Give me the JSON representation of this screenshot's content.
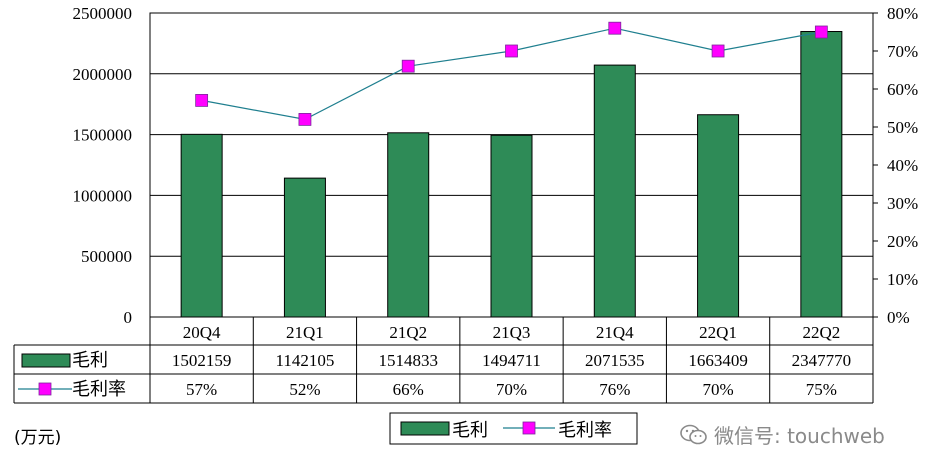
{
  "chart_data": {
    "type": "bar",
    "categories": [
      "20Q4",
      "21Q1",
      "21Q2",
      "21Q3",
      "21Q4",
      "22Q1",
      "22Q2"
    ],
    "series": [
      {
        "name": "毛利",
        "type": "bar",
        "axis": "left",
        "values": [
          1502159,
          1142105,
          1514833,
          1494711,
          2071535,
          1663409,
          2347770
        ],
        "color": "#2e8b57"
      },
      {
        "name": "毛利率",
        "type": "line",
        "axis": "right",
        "values": [
          57,
          52,
          66,
          70,
          76,
          70,
          75
        ],
        "labels": [
          "57%",
          "52%",
          "66%",
          "70%",
          "76%",
          "70%",
          "75%"
        ],
        "color": "#1f7f8f",
        "marker_color": "#ff00ff"
      }
    ],
    "y_left": {
      "ylim": [
        0,
        2500000
      ],
      "ticks": [
        "0",
        "500000",
        "1000000",
        "1500000",
        "2000000",
        "2500000"
      ]
    },
    "y_right": {
      "ylim": [
        0,
        80
      ],
      "ticks": [
        "0%",
        "10%",
        "20%",
        "30%",
        "40%",
        "50%",
        "60%",
        "70%",
        "80%"
      ]
    },
    "grid": true,
    "legend_position": "bottom",
    "data_table": true
  },
  "unit_label": "(万元)",
  "watermark": "微信号: touchweb"
}
